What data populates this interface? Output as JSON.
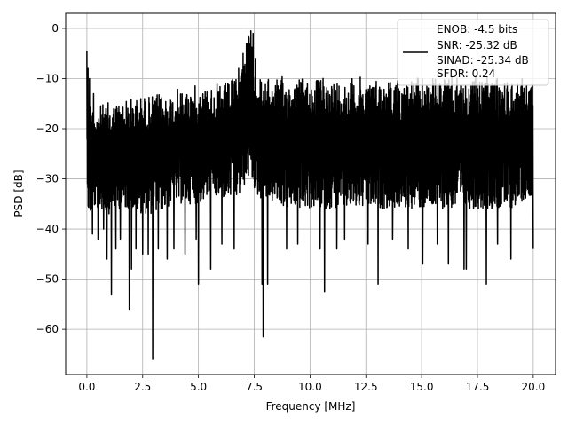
{
  "chart_data": {
    "type": "line",
    "title": "",
    "xlabel": "Frequency [MHz]",
    "ylabel": "PSD [dB]",
    "xlim": [
      -0.95,
      21.0
    ],
    "ylim": [
      -69,
      3
    ],
    "xticks": [
      0.0,
      2.5,
      5.0,
      7.5,
      10.0,
      12.5,
      15.0,
      17.5,
      20.0
    ],
    "xtick_labels": [
      "0.0",
      "2.5",
      "5.0",
      "7.5",
      "10.0",
      "12.5",
      "15.0",
      "17.5",
      "20.0"
    ],
    "yticks": [
      0,
      -10,
      -20,
      -30,
      -40,
      -50,
      -60
    ],
    "ytick_labels": [
      "0",
      "−10",
      "−20",
      "−30",
      "−40",
      "−50",
      "−60"
    ],
    "grid": true,
    "legend_position": "top-right",
    "line_color": "#000000",
    "series": [
      {
        "name": "",
        "envelope": {
          "x": [
            0.0,
            0.05,
            0.1,
            0.3,
            0.6,
            1.0,
            1.5,
            2.0,
            2.5,
            3.0,
            3.5,
            4.0,
            4.5,
            5.0,
            5.5,
            6.0,
            6.5,
            6.8,
            7.0,
            7.2,
            7.35,
            7.5,
            7.7,
            8.0,
            8.5,
            9.0,
            10.0,
            11.0,
            12.0,
            13.0,
            14.0,
            15.0,
            16.0,
            17.0,
            18.0,
            19.0,
            20.0
          ],
          "upper": [
            -4.5,
            -12,
            -13.5,
            -15,
            -15,
            -14.5,
            -14,
            -13.5,
            -13,
            -13,
            -12.5,
            -12,
            -11.5,
            -11,
            -11,
            -11,
            -10,
            -8,
            -5,
            -2,
            -0.2,
            -6,
            -9,
            -10,
            -9.5,
            -9.5,
            -9.5,
            -9.5,
            -9.5,
            -9.5,
            -9.5,
            -9.5,
            -9.5,
            -9.5,
            -9.5,
            -9.5,
            -10
          ],
          "lower": [
            -26,
            -36,
            -38,
            -36,
            -36,
            -37,
            -36,
            -36,
            -37,
            -37,
            -36,
            -35,
            -35,
            -35,
            -34,
            -34,
            -34,
            -34,
            -32,
            -30,
            -30,
            -32,
            -34,
            -34,
            -35,
            -36,
            -36,
            -36,
            -36,
            -36,
            -36,
            -36,
            -36,
            -36,
            -36,
            -36,
            -33
          ]
        },
        "dips": [
          [
            0.25,
            -41
          ],
          [
            0.5,
            -42
          ],
          [
            0.75,
            -40
          ],
          [
            0.9,
            -46
          ],
          [
            1.1,
            -53
          ],
          [
            1.3,
            -44
          ],
          [
            1.5,
            -42
          ],
          [
            1.9,
            -56
          ],
          [
            2.0,
            -48
          ],
          [
            2.2,
            -44
          ],
          [
            2.5,
            -45
          ],
          [
            2.75,
            -45
          ],
          [
            2.95,
            -66
          ],
          [
            3.2,
            -44
          ],
          [
            3.6,
            -46
          ],
          [
            3.9,
            -44
          ],
          [
            4.4,
            -45
          ],
          [
            4.9,
            -42
          ],
          [
            5.0,
            -51
          ],
          [
            5.55,
            -48
          ],
          [
            6.05,
            -43
          ],
          [
            6.6,
            -44
          ],
          [
            7.15,
            -42
          ],
          [
            7.85,
            -51
          ],
          [
            7.9,
            -61.5
          ],
          [
            8.1,
            -51
          ],
          [
            8.95,
            -44
          ],
          [
            9.45,
            -43
          ],
          [
            10.45,
            -44
          ],
          [
            10.65,
            -52.5
          ],
          [
            11.2,
            -44
          ],
          [
            11.55,
            -42
          ],
          [
            12.6,
            -43
          ],
          [
            13.05,
            -51
          ],
          [
            13.7,
            -42
          ],
          [
            14.4,
            -44
          ],
          [
            15.05,
            -47
          ],
          [
            15.7,
            -43
          ],
          [
            16.2,
            -47
          ],
          [
            16.9,
            -48
          ],
          [
            17.0,
            -48
          ],
          [
            17.9,
            -51
          ],
          [
            18.4,
            -43
          ],
          [
            19.0,
            -46
          ],
          [
            20.0,
            -44
          ]
        ],
        "spikes": [
          [
            0.0,
            -4.5
          ],
          [
            0.05,
            -8
          ],
          [
            0.12,
            -10
          ],
          [
            0.3,
            -13
          ],
          [
            6.8,
            -8
          ],
          [
            7.0,
            -5
          ],
          [
            7.15,
            -3
          ],
          [
            7.25,
            -1.5
          ],
          [
            7.35,
            -0.5
          ],
          [
            7.45,
            -1
          ],
          [
            7.55,
            -6
          ]
        ]
      }
    ],
    "legend_entries": [
      "ENOB: -4.5 bits",
      "SNR: -25.32 dB",
      "SINAD: -25.34 dB",
      "SFDR: 0.24"
    ]
  }
}
